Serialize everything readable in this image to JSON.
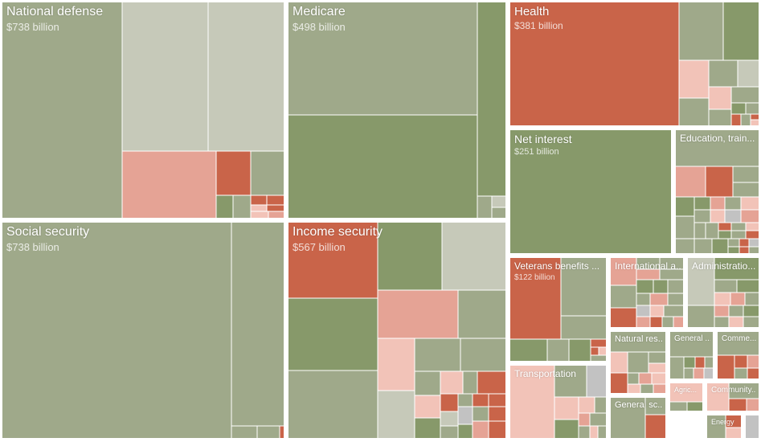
{
  "chart_data": {
    "type": "treemap",
    "title": "",
    "units": "billion USD",
    "colors": {
      "sage": "#9fa98a",
      "green": "#87996a",
      "light": "#c6c9b9",
      "red": "#c96449",
      "pink": "#e5a395",
      "lightpink": "#f2c3b8",
      "gray": "#c2c2c2",
      "border": "#ffffff"
    },
    "groups": [
      {
        "key": "defense",
        "name": "National defense",
        "amount_label": "$738 billion",
        "value": 738
      },
      {
        "key": "social",
        "name": "Social security",
        "amount_label": "$738 billion",
        "value": 738
      },
      {
        "key": "medicare",
        "name": "Medicare",
        "amount_label": "$498 billion",
        "value": 498
      },
      {
        "key": "income",
        "name": "Income security",
        "amount_label": "$567 billion",
        "value": 567
      },
      {
        "key": "health",
        "name": "Health",
        "amount_label": "$381 billion",
        "value": 381
      },
      {
        "key": "interest",
        "name": "Net interest",
        "amount_label": "$251 billion",
        "value": 251
      },
      {
        "key": "education",
        "name": "Education, train...",
        "amount_label": "",
        "value": null
      },
      {
        "key": "veterans",
        "name": "Veterans benefits ...",
        "amount_label": "$122 billion",
        "value": 122
      },
      {
        "key": "international",
        "name": "International a...",
        "amount_label": "",
        "value": null
      },
      {
        "key": "administration",
        "name": "Administratio...",
        "amount_label": "",
        "value": null
      },
      {
        "key": "transportation",
        "name": "Transportation",
        "amount_label": "",
        "value": null
      },
      {
        "key": "natural",
        "name": "Natural res...",
        "amount_label": "",
        "value": null
      },
      {
        "key": "general_gov",
        "name": "General ...",
        "amount_label": "",
        "value": null
      },
      {
        "key": "commerce",
        "name": "Comme...",
        "amount_label": "",
        "value": null
      },
      {
        "key": "general_sci",
        "name": "General sc...",
        "amount_label": "",
        "value": null
      },
      {
        "key": "agriculture",
        "name": "Agric...",
        "amount_label": "",
        "value": null
      },
      {
        "key": "community",
        "name": "Community...",
        "amount_label": "",
        "value": null
      },
      {
        "key": "energy",
        "name": "Energy",
        "amount_label": "",
        "value": null
      },
      {
        "key": "misc",
        "name": "",
        "amount_label": "",
        "value": null
      }
    ]
  }
}
